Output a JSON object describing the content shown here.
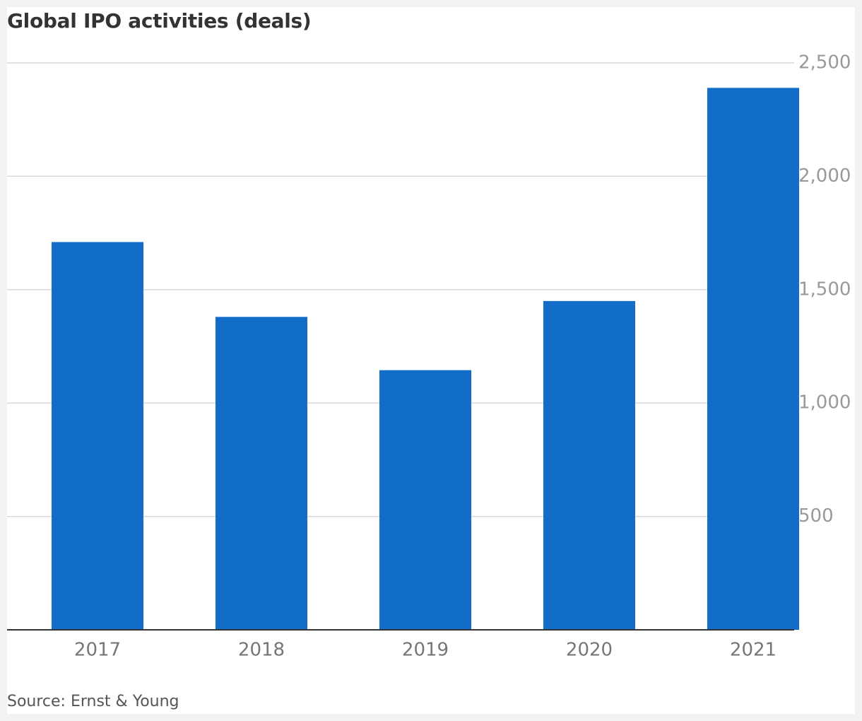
{
  "title": "Global IPO activities (deals)",
  "source": "Source: Ernst & Young",
  "colors": {
    "bar": "#116dc8",
    "gridline": "#d9d9d9",
    "baseline": "#333333",
    "y_tick_text": "#999999",
    "x_tick_text": "#777777",
    "title_text": "#333333",
    "background": "#ffffff"
  },
  "chart_data": {
    "type": "bar",
    "title": "Global IPO activities (deals)",
    "xlabel": "",
    "ylabel": "",
    "categories": [
      "2017",
      "2018",
      "2019",
      "2020",
      "2021"
    ],
    "values": [
      1710,
      1380,
      1145,
      1450,
      2390
    ],
    "ylim": [
      0,
      2500
    ],
    "yticks": [
      500,
      1000,
      1500,
      2000,
      2500
    ],
    "ytick_labels": [
      "500",
      "1,000",
      "1,500",
      "2,000",
      "2,500"
    ],
    "y_axis_side": "right",
    "grid": true,
    "legend": "none"
  }
}
